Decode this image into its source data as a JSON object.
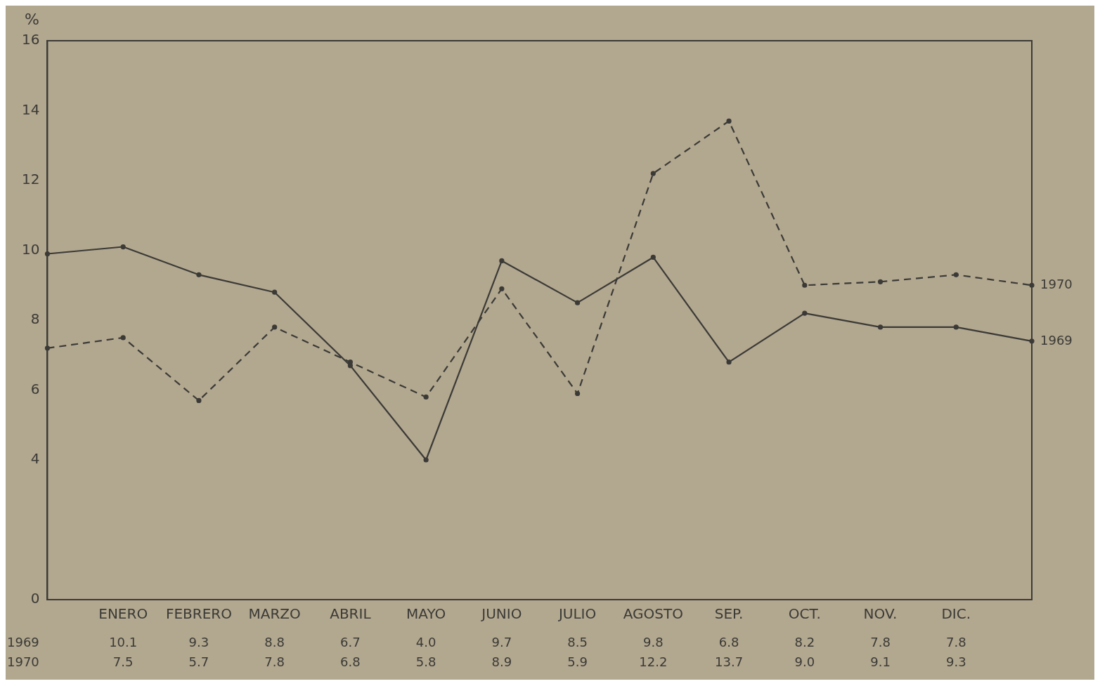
{
  "chart_data": {
    "type": "line",
    "ylabel": "%",
    "categories": [
      null,
      "ENERO",
      "FEBRERO",
      "MARZO",
      "ABRIL",
      "MAYO",
      "JUNIO",
      "JULIO",
      "AGOSTO",
      "SEP.",
      "OCT.",
      "NOV.",
      "DIC.",
      null
    ],
    "series": [
      {
        "name": "1969",
        "color": "#3b3a36",
        "line_style": "solid",
        "values": [
          9.9,
          10.1,
          9.3,
          8.8,
          6.7,
          4.0,
          9.7,
          8.5,
          9.8,
          6.8,
          8.2,
          7.8,
          7.8,
          7.4
        ],
        "value_labels": [
          null,
          "10.1",
          "9.3",
          "8.8",
          "6.7",
          "4.0",
          "9.7",
          "8.5",
          "9.8",
          "6.8",
          "8.2",
          "7.8",
          "7.8",
          null
        ]
      },
      {
        "name": "1970",
        "color": "#3b3a36",
        "line_style": "dashed",
        "values": [
          7.2,
          7.5,
          5.7,
          7.8,
          6.8,
          5.8,
          8.9,
          5.9,
          12.2,
          13.7,
          9.0,
          9.1,
          9.3,
          9.0
        ],
        "value_labels": [
          null,
          "7.5",
          "5.7",
          "7.8",
          "6.8",
          "5.8",
          "8.9",
          "5.9",
          "12.2",
          "13.7",
          "9.0",
          "9.1",
          "9.3",
          null
        ]
      }
    ],
    "ylim": [
      0,
      16
    ],
    "yticks": [
      0,
      4,
      6,
      8,
      10,
      12,
      14,
      16
    ],
    "grid": false,
    "marker": "circle"
  }
}
